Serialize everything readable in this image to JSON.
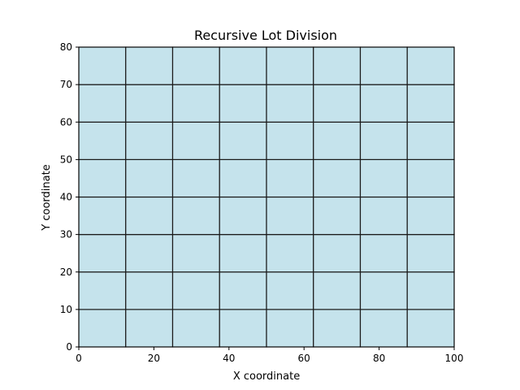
{
  "chart_data": {
    "type": "heatmap",
    "title": "Recursive Lot Division",
    "xlabel": "X coordinate",
    "ylabel": "Y coordinate",
    "xlim": [
      0,
      100
    ],
    "ylim": [
      0,
      80
    ],
    "xticks": [
      0,
      20,
      40,
      60,
      80,
      100
    ],
    "yticks": [
      0,
      10,
      20,
      30,
      40,
      50,
      60,
      70,
      80
    ],
    "lots": {
      "columns": 8,
      "rows": 8,
      "x_edges": [
        0,
        12.5,
        25,
        37.5,
        50,
        62.5,
        75,
        87.5,
        100
      ],
      "y_edges": [
        0,
        10,
        20,
        30,
        40,
        50,
        60,
        70,
        80
      ]
    },
    "colors": {
      "lot_fill": "#c5e3ec",
      "lot_edge": "#1a1a1a",
      "axis": "#000000"
    },
    "grid": false,
    "legend": "none"
  }
}
